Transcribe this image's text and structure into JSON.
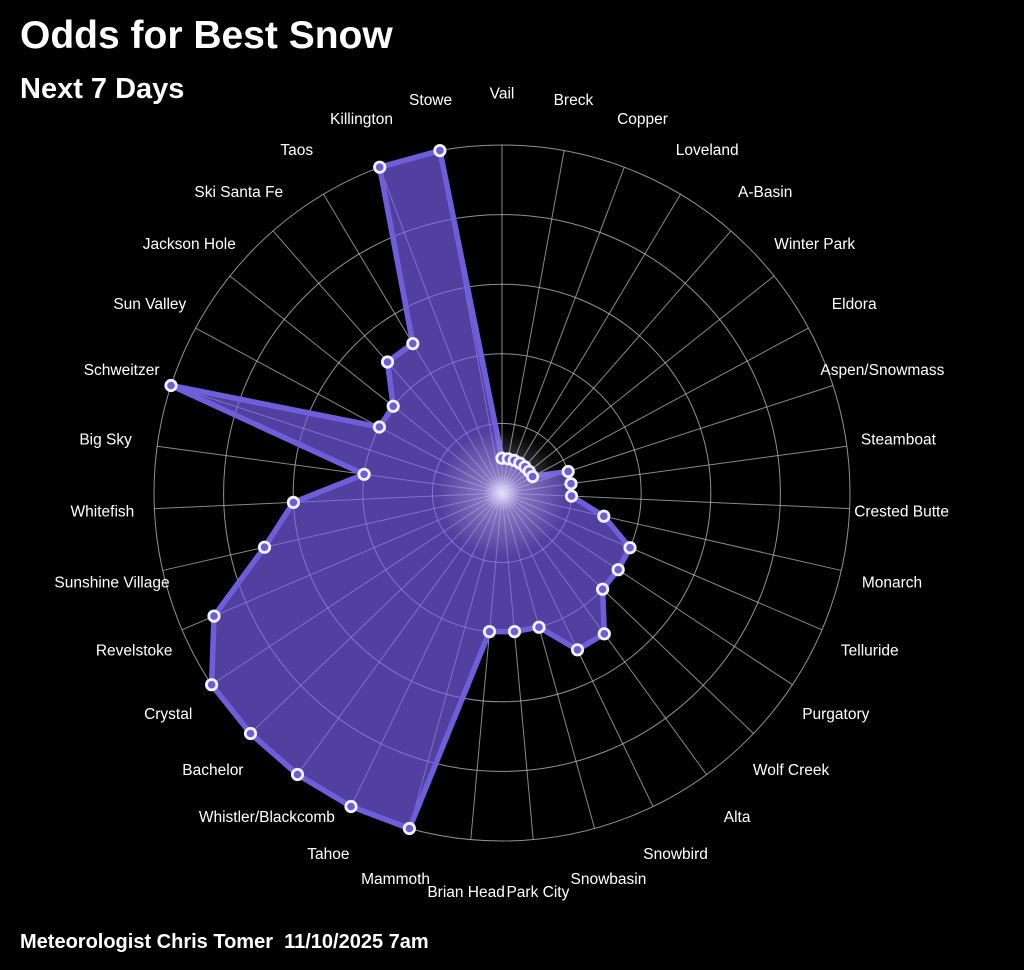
{
  "header": {
    "title": "Odds for Best Snow",
    "subtitle": "Next 7 Days"
  },
  "footer": {
    "credit": "Meteorologist Chris Tomer  11/10/2025 7am"
  },
  "chart_data": {
    "type": "radar",
    "title": "Odds for Best Snow",
    "subtitle": "Next 7 Days",
    "units": "percent odds",
    "start": "top",
    "direction": "clockwise",
    "grid": "on",
    "legend": "none",
    "max": 100,
    "rings": [
      20,
      40,
      60,
      80,
      100
    ],
    "categories": [
      "Vail",
      "Breck",
      "Copper",
      "Loveland",
      "A-Basin",
      "Winter Park",
      "Eldora",
      "Aspen/Snowmass",
      "Steamboat",
      "Crested Butte",
      "Monarch",
      "Telluride",
      "Purgatory",
      "Wolf Creek",
      "Alta",
      "Snowbird",
      "Snowbasin",
      "Park City",
      "Brian Head",
      "Mammoth",
      "Tahoe",
      "Whistler/Blackcomb",
      "Bachelor",
      "Crystal",
      "Revelstoke",
      "Sunshine Village",
      "Whitefish",
      "Big Sky",
      "Schweitzer",
      "Sun Valley",
      "Jackson Hole",
      "Ski Santa Fe",
      "Taos",
      "Killington",
      "Stowe"
    ],
    "values": [
      10,
      10,
      10,
      10,
      10,
      10,
      10,
      20,
      20,
      20,
      30,
      40,
      40,
      40,
      50,
      50,
      40,
      40,
      40,
      100,
      100,
      100,
      100,
      100,
      90,
      70,
      60,
      40,
      100,
      40,
      40,
      50,
      50,
      100,
      100
    ],
    "colors": {
      "background": "#000000",
      "grid": "#c2c2c2",
      "fill": "#7b61f2",
      "fill_opacity": 0.66,
      "stroke": "#6f5ed9",
      "marker_fill": "#6e5ed4",
      "marker_edge": "#f2f0fd",
      "label": "#ffffff",
      "glow_core": "#e9e5fc"
    }
  }
}
